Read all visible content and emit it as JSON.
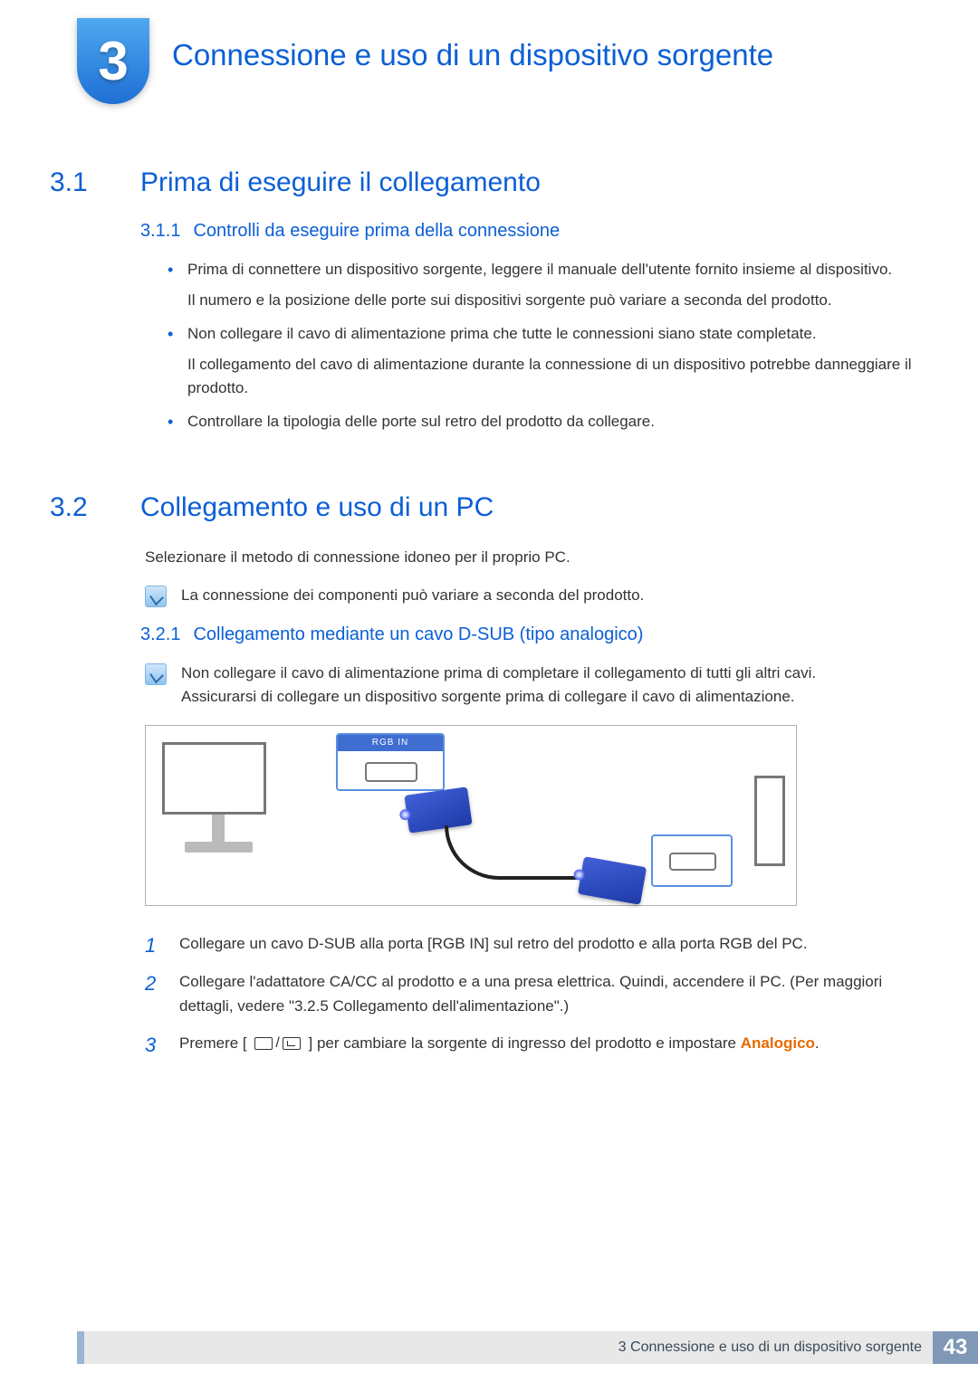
{
  "chapter": {
    "number": "3",
    "title": "Connessione e uso di un dispositivo sorgente"
  },
  "section_3_1": {
    "num": "3.1",
    "title": "Prima di eseguire il collegamento",
    "sub_3_1_1": {
      "num": "3.1.1",
      "title": "Controlli da eseguire prima della connessione",
      "bullets": [
        {
          "p1": "Prima di connettere un dispositivo sorgente, leggere il manuale dell'utente fornito insieme al dispositivo.",
          "p2": "Il numero e la posizione delle porte sui dispositivi sorgente può variare a seconda del prodotto."
        },
        {
          "p1": "Non collegare il cavo di alimentazione prima che tutte le connessioni siano state completate.",
          "p2": "Il collegamento del cavo di alimentazione durante la connessione di un dispositivo potrebbe danneggiare il prodotto."
        },
        {
          "p1": "Controllare la tipologia delle porte sul retro del prodotto da collegare."
        }
      ]
    }
  },
  "section_3_2": {
    "num": "3.2",
    "title": "Collegamento e uso di un PC",
    "intro": "Selezionare il metodo di connessione idoneo per il proprio PC.",
    "note1": "La connessione dei componenti può variare a seconda del prodotto.",
    "sub_3_2_1": {
      "num": "3.2.1",
      "title": "Collegamento mediante un cavo D-SUB (tipo analogico)",
      "note_line1": "Non collegare il cavo di alimentazione prima di completare il collegamento di tutti gli altri cavi.",
      "note_line2": "Assicurarsi di collegare un dispositivo sorgente prima di collegare il cavo di alimentazione.",
      "diagram": {
        "port_label": "RGB IN"
      },
      "steps": {
        "s1": {
          "n": "1",
          "text": "Collegare un cavo D-SUB alla porta [RGB IN] sul retro del prodotto e alla porta RGB del PC."
        },
        "s2": {
          "n": "2",
          "text": "Collegare l'adattatore CA/CC al prodotto e a una presa elettrica. Quindi, accendere il PC. (Per maggiori dettagli, vedere \"3.2.5     Collegamento dell'alimentazione\".)"
        },
        "s3": {
          "n": "3",
          "pre": "Premere [ ",
          "post": " ] per cambiare la sorgente di ingresso del prodotto e impostare ",
          "highlight": "Analogico",
          "tail": "."
        }
      }
    }
  },
  "footer": {
    "text": "3 Connessione e uso di un dispositivo sorgente",
    "page": "43"
  },
  "colors": {
    "heading": "#0b5fd6",
    "highlight": "#e86a00",
    "footer_bg": "#e8e8e8",
    "footer_page_bg": "#7f98b5"
  }
}
